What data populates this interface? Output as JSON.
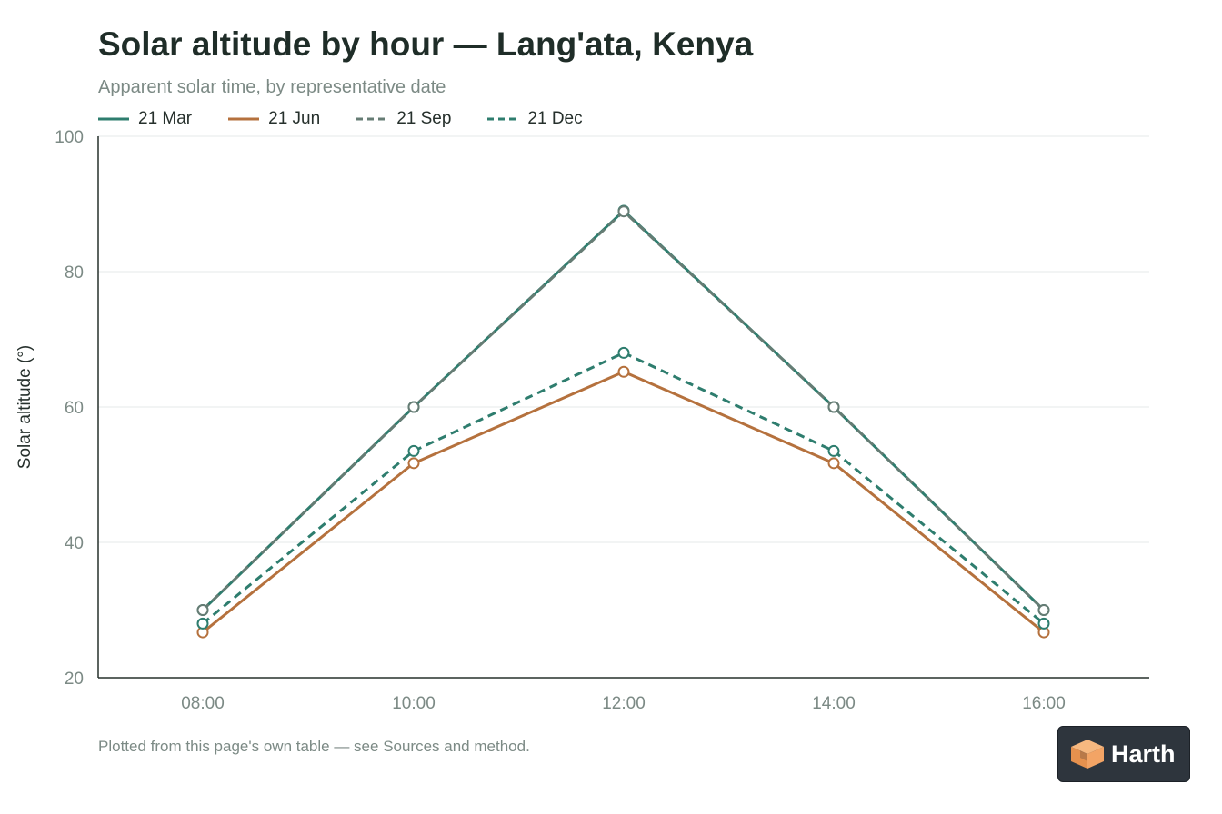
{
  "header": {
    "title": "Solar altitude by hour — Lang'ata, Kenya",
    "subtitle": "Apparent solar time, by representative date"
  },
  "footer": {
    "note": "Plotted from this page's own table — see Sources and method."
  },
  "brand": {
    "name": "Harth",
    "icon": "cube-logo-icon"
  },
  "colors": {
    "mar": "#2e7d6e",
    "jun": "#b5713d",
    "sep": "#667c74",
    "dec": "#2e7d6e",
    "axis": "#26302c",
    "grid": "#e6e9e8",
    "tick_text": "#7c8a85"
  },
  "chart_data": {
    "type": "line",
    "title": "Solar altitude by hour — Lang'ata, Kenya",
    "subtitle": "Apparent solar time, by representative date",
    "xlabel": "",
    "ylabel": "Solar altitude (°)",
    "categories": [
      "08:00",
      "10:00",
      "12:00",
      "14:00",
      "16:00"
    ],
    "ylim": [
      20,
      100
    ],
    "yticks": [
      20,
      40,
      60,
      80,
      100
    ],
    "grid": true,
    "legend_position": "top-left",
    "series": [
      {
        "name": "21 Mar",
        "values": [
          30.0,
          60.0,
          89.0,
          60.0,
          30.0
        ],
        "style": "solid",
        "color": "#2e7d6e"
      },
      {
        "name": "21 Jun",
        "values": [
          26.7,
          51.7,
          65.2,
          51.7,
          26.7
        ],
        "style": "solid",
        "color": "#b5713d"
      },
      {
        "name": "21 Sep",
        "values": [
          30.0,
          60.0,
          88.9,
          60.0,
          30.0
        ],
        "style": "dashed",
        "color": "#667c74"
      },
      {
        "name": "21 Dec",
        "values": [
          28.0,
          53.5,
          68.0,
          53.5,
          28.0
        ],
        "style": "dashed",
        "color": "#2e7d6e"
      }
    ]
  }
}
